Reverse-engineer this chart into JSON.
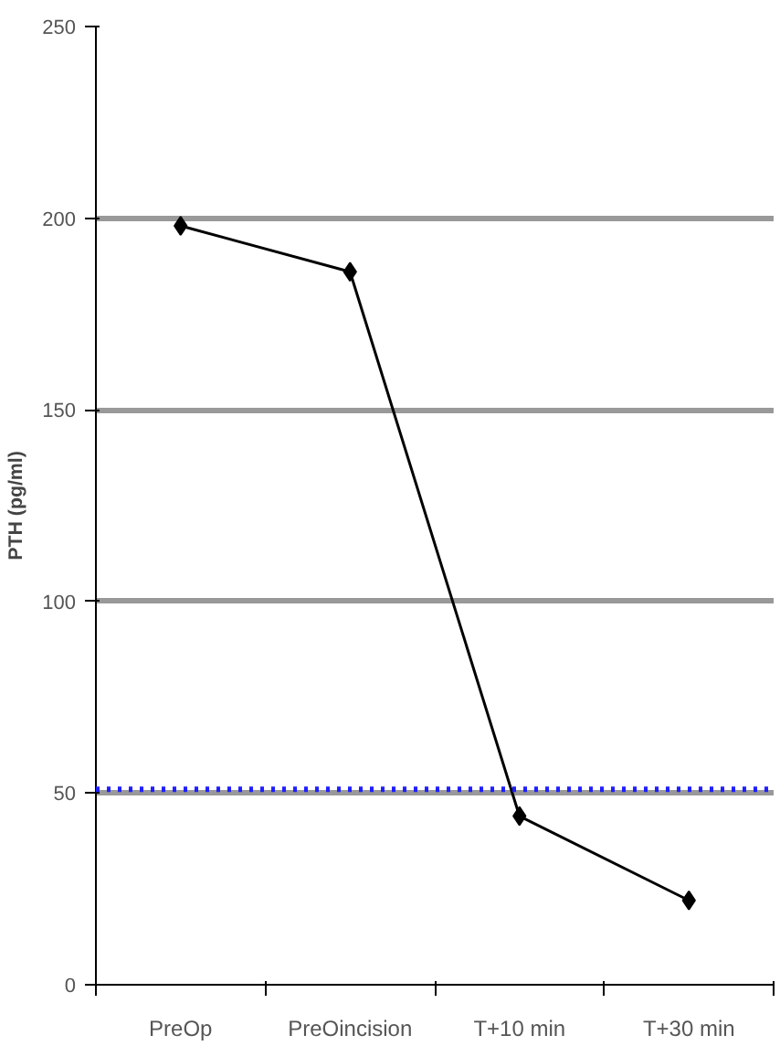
{
  "chart_data": {
    "type": "line",
    "ylabel": "PTH (pg/ml)",
    "categories": [
      "PreOp",
      "PreOincision",
      "T+10 min",
      "T+30 min"
    ],
    "series": [
      {
        "color": "#000000",
        "values": [
          198,
          186,
          44,
          22
        ]
      }
    ],
    "ylim": [
      0,
      250
    ],
    "yticks": [
      0,
      50,
      100,
      150,
      200,
      250
    ],
    "grid": "y",
    "marker": "diamond",
    "line_style": "solid",
    "ref_lines": [
      {
        "axis": "y",
        "value": 51,
        "color": "#1f1fff",
        "line_style": "dotted"
      }
    ]
  }
}
